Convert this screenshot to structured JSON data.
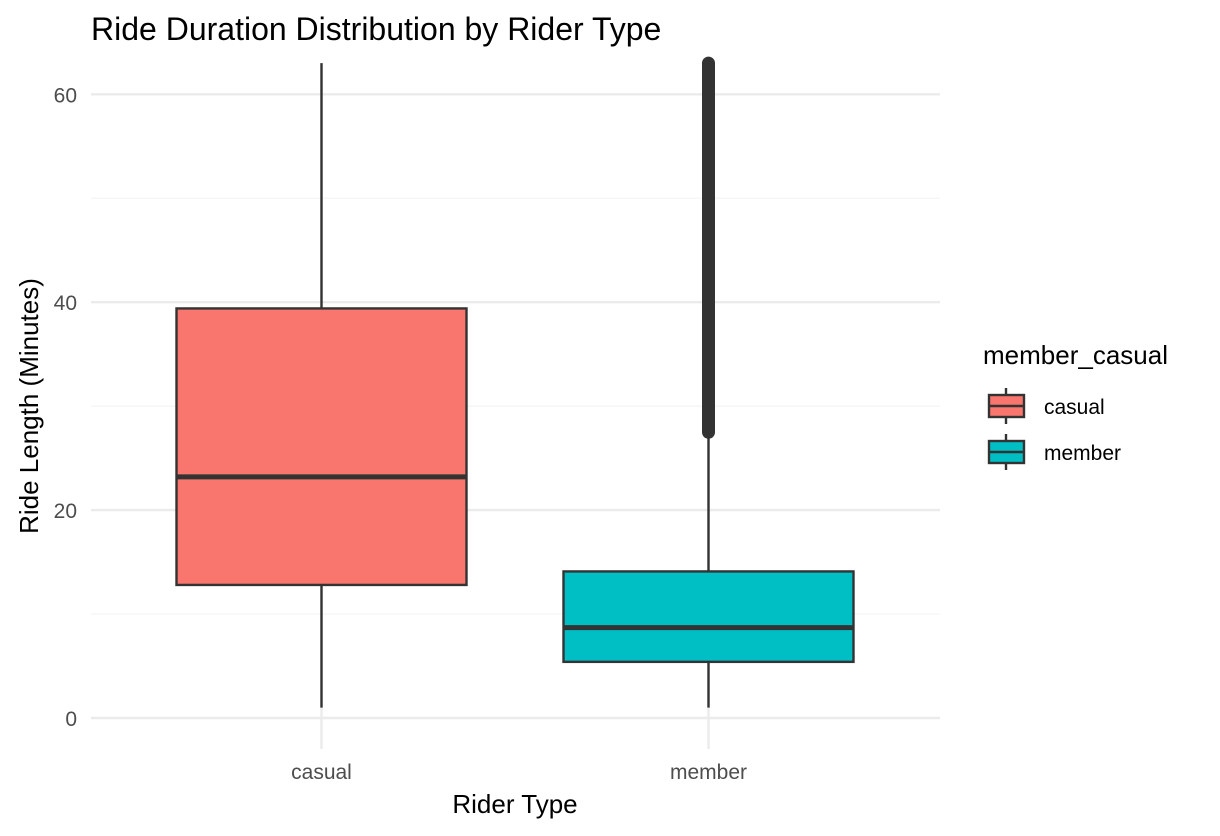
{
  "chart_data": {
    "type": "boxplot",
    "title": "Ride Duration Distribution by Rider Type",
    "xlabel": "Rider Type",
    "ylabel": "Ride Length (Minutes)",
    "categories": [
      "casual",
      "member"
    ],
    "ylim": [
      -1.5,
      63
    ],
    "y_ticks": [
      0,
      20,
      40,
      60
    ],
    "grid": true,
    "legend": {
      "title": "member_casual",
      "position": "right",
      "entries": [
        "casual",
        "member"
      ]
    },
    "boxes": [
      {
        "category": "casual",
        "whisker_low": 1,
        "q1": 12.8,
        "median": 23.2,
        "q3": 39.4,
        "whisker_high": 63,
        "outliers_from": null,
        "outliers_to": null,
        "fill": "#F8766D"
      },
      {
        "category": "member",
        "whisker_low": 1,
        "q1": 5.4,
        "median": 8.7,
        "q3": 14.1,
        "whisker_high": 27.1,
        "outliers_from": 27.1,
        "outliers_to": 63,
        "fill": "#00BFC4"
      }
    ]
  },
  "colors": {
    "casual": "#F8766D",
    "member": "#00BFC4",
    "outline": "#333333",
    "grid_major": "#ebebeb",
    "grid_minor": "#f4f4f4"
  }
}
